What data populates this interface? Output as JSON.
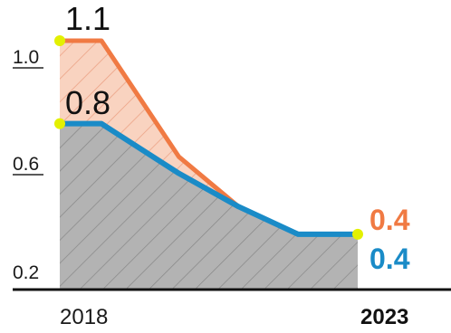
{
  "chart_data": {
    "type": "area",
    "x": [
      2018,
      2019,
      2020,
      2021,
      2022,
      2023
    ],
    "x_tick_labels": [
      "2018",
      "2023"
    ],
    "y_tick_labels": [
      "1.0",
      "0.6",
      "0.2"
    ],
    "y_ticks": [
      1.0,
      0.6,
      0.2
    ],
    "ylim": [
      0.2,
      1.1
    ],
    "series": [
      {
        "key": "orange",
        "values": [
          1.1,
          1.1,
          0.68,
          0.5,
          0.4,
          0.4
        ],
        "color": "#F07A43",
        "fill": "#F9D3C0"
      },
      {
        "key": "blue",
        "values": [
          0.8,
          0.8,
          0.62,
          0.5,
          0.4,
          0.4
        ],
        "color": "#1A8BC7",
        "fill": "#B3B3B3"
      }
    ],
    "labels": {
      "orange_start": "1.1",
      "blue_start": "0.8",
      "orange_end": "0.4",
      "blue_end": "0.4"
    },
    "marker_color": "#E3F000",
    "grid": false
  }
}
